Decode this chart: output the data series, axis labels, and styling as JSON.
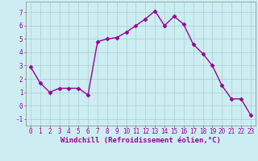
{
  "xlabel": "Windchill (Refroidissement éolien,°C)",
  "x": [
    0,
    1,
    2,
    3,
    4,
    5,
    6,
    7,
    8,
    9,
    10,
    11,
    12,
    13,
    14,
    15,
    16,
    17,
    18,
    19,
    20,
    21,
    22,
    23
  ],
  "y": [
    2.9,
    1.7,
    1.0,
    1.3,
    1.3,
    1.3,
    0.8,
    4.8,
    5.0,
    5.1,
    5.5,
    6.0,
    6.5,
    7.1,
    6.0,
    6.7,
    6.1,
    4.6,
    3.9,
    3.0,
    1.5,
    0.5,
    0.5,
    -0.7
  ],
  "line_color": "#990099",
  "marker": "D",
  "markersize": 2.5,
  "linewidth": 1.0,
  "bg_color": "#cceef2",
  "grid_color": "#aacccc",
  "ylim": [
    -1.5,
    7.8
  ],
  "xlim": [
    -0.5,
    23.5
  ],
  "yticks": [
    -1,
    0,
    1,
    2,
    3,
    4,
    5,
    6,
    7
  ],
  "xticks": [
    0,
    1,
    2,
    3,
    4,
    5,
    6,
    7,
    8,
    9,
    10,
    11,
    12,
    13,
    14,
    15,
    16,
    17,
    18,
    19,
    20,
    21,
    22,
    23
  ],
  "tick_fontsize": 5.5,
  "xlabel_fontsize": 6.5,
  "tick_color": "#990099",
  "xlabel_color": "#990099"
}
